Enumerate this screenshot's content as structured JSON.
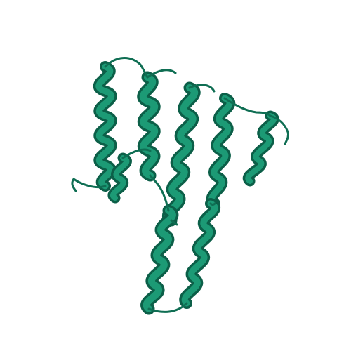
{
  "image": {
    "subject": "protein-ribbon",
    "colors": {
      "background": "#ffffff",
      "ribbon": "#168a6a",
      "ribbon_dark": "#0c5f48",
      "ribbon_light": "#2aa883"
    }
  }
}
